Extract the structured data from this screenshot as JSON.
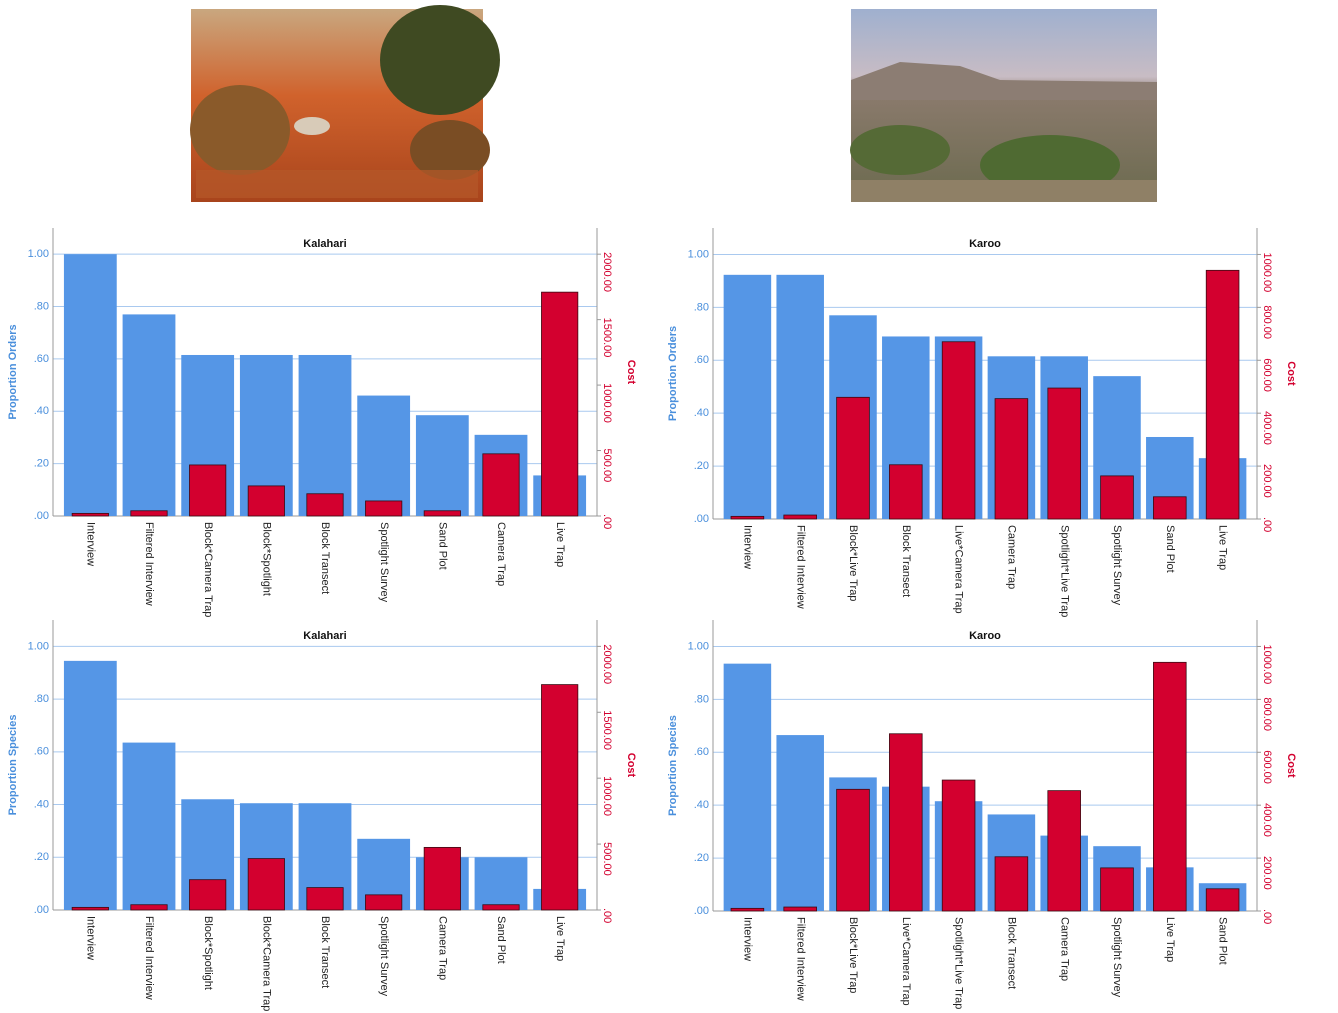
{
  "chart_data": [
    {
      "type": "bar",
      "title": "Kalahari",
      "categories": [
        "Interview",
        "Filtered Interview",
        "Block*Camera Trap",
        "Block*Spotlight",
        "Block Transect",
        "Spotlight Survey",
        "Sand Plot",
        "Camera Trap",
        "Live Trap"
      ],
      "series": [
        {
          "name": "Proportion Orders",
          "color": "#5596e6",
          "values": [
            1.0,
            0.77,
            0.615,
            0.615,
            0.615,
            0.46,
            0.385,
            0.31,
            0.155
          ]
        },
        {
          "name": "Cost",
          "color": "#d3002f",
          "axis": "y2",
          "values": [
            20,
            40,
            390,
            230,
            170,
            115,
            40,
            475,
            1710
          ]
        }
      ],
      "ylim": [
        0,
        1.1
      ],
      "yticks": [
        {
          "value": 0,
          "label": ".00"
        },
        {
          "value": 0.2,
          "label": ".20"
        },
        {
          "value": 0.4,
          "label": ".40"
        },
        {
          "value": 0.6,
          "label": ".60"
        },
        {
          "value": 0.8,
          "label": ".80"
        },
        {
          "value": 1.0,
          "label": "1.00"
        }
      ],
      "y2lim": [
        0,
        2200
      ],
      "y2ticks": [
        {
          "value": 0,
          "label": ".00"
        },
        {
          "value": 500,
          "label": "500.00"
        },
        {
          "value": 1000,
          "label": "1000.00"
        },
        {
          "value": 1500,
          "label": "1500.00"
        },
        {
          "value": 2000,
          "label": "2000.00"
        }
      ],
      "grid": true
    },
    {
      "type": "bar",
      "title": "Karoo",
      "categories": [
        "Interview",
        "Filtered Interview",
        "Block*Live Trap",
        "Block Transect",
        "Live*Camera Trap",
        "Camera Trap",
        "Spotlight*Live Trap",
        "Spotlight Survey",
        "Sand Plot",
        "Live Trap"
      ],
      "series": [
        {
          "name": "Proportion Orders",
          "color": "#5596e6",
          "values": [
            0.923,
            0.923,
            0.77,
            0.69,
            0.69,
            0.615,
            0.615,
            0.54,
            0.31,
            0.23
          ]
        },
        {
          "name": "Cost",
          "color": "#d3002f",
          "axis": "y2",
          "values": [
            10,
            15,
            460,
            205,
            670,
            455,
            495,
            163,
            84,
            940
          ]
        }
      ],
      "ylim": [
        0,
        1.1
      ],
      "yticks": [
        {
          "value": 0,
          "label": ".00"
        },
        {
          "value": 0.2,
          "label": ".20"
        },
        {
          "value": 0.4,
          "label": ".40"
        },
        {
          "value": 0.6,
          "label": ".60"
        },
        {
          "value": 0.8,
          "label": ".80"
        },
        {
          "value": 1.0,
          "label": "1.00"
        }
      ],
      "y2lim": [
        0,
        1100
      ],
      "y2ticks": [
        {
          "value": 0,
          "label": ".00"
        },
        {
          "value": 200,
          "label": "200.00"
        },
        {
          "value": 400,
          "label": "400.00"
        },
        {
          "value": 600,
          "label": "600.00"
        },
        {
          "value": 800,
          "label": "800.00"
        },
        {
          "value": 1000,
          "label": "1000.00"
        }
      ],
      "grid": true
    },
    {
      "type": "bar",
      "title": "Kalahari",
      "categories": [
        "Interview",
        "Filtered Interview",
        "Block*Spotlight",
        "Block*Camera Trap",
        "Block Transect",
        "Spotlight Survey",
        "Camera Trap",
        "Sand Plot",
        "Live Trap"
      ],
      "series": [
        {
          "name": "Proportion Species",
          "color": "#5596e6",
          "values": [
            0.945,
            0.635,
            0.42,
            0.405,
            0.405,
            0.27,
            0.2,
            0.2,
            0.08
          ]
        },
        {
          "name": "Cost",
          "color": "#d3002f",
          "axis": "y2",
          "values": [
            20,
            40,
            230,
            390,
            170,
            115,
            475,
            40,
            1710
          ]
        }
      ],
      "ylim": [
        0,
        1.1
      ],
      "yticks": [
        {
          "value": 0,
          "label": ".00"
        },
        {
          "value": 0.2,
          "label": ".20"
        },
        {
          "value": 0.4,
          "label": ".40"
        },
        {
          "value": 0.6,
          "label": ".60"
        },
        {
          "value": 0.8,
          "label": ".80"
        },
        {
          "value": 1.0,
          "label": "1.00"
        }
      ],
      "y2lim": [
        0,
        2200
      ],
      "y2ticks": [
        {
          "value": 0,
          "label": ".00"
        },
        {
          "value": 500,
          "label": "500.00"
        },
        {
          "value": 1000,
          "label": "1000.00"
        },
        {
          "value": 1500,
          "label": "1500.00"
        },
        {
          "value": 2000,
          "label": "2000.00"
        }
      ],
      "grid": true
    },
    {
      "type": "bar",
      "title": "Karoo",
      "categories": [
        "Interview",
        "Filtered Interview",
        "Block*Live Trap",
        "Live*Camera Trap",
        "Spotlight*Live Trap",
        "Block Transect",
        "Camera Trap",
        "Spotlight Survey",
        "Live Trap",
        "Sand Plot"
      ],
      "series": [
        {
          "name": "Proportion Species",
          "color": "#5596e6",
          "values": [
            0.935,
            0.665,
            0.505,
            0.47,
            0.415,
            0.365,
            0.285,
            0.245,
            0.165,
            0.105
          ]
        },
        {
          "name": "Cost",
          "color": "#d3002f",
          "axis": "y2",
          "values": [
            10,
            15,
            460,
            670,
            495,
            205,
            455,
            163,
            940,
            84
          ]
        }
      ],
      "ylim": [
        0,
        1.1
      ],
      "yticks": [
        {
          "value": 0,
          "label": ".00"
        },
        {
          "value": 0.2,
          "label": ".20"
        },
        {
          "value": 0.4,
          "label": ".40"
        },
        {
          "value": 0.6,
          "label": ".60"
        },
        {
          "value": 0.8,
          "label": ".80"
        },
        {
          "value": 1.0,
          "label": "1.00"
        }
      ],
      "y2lim": [
        0,
        1100
      ],
      "y2ticks": [
        {
          "value": 0,
          "label": ".00"
        },
        {
          "value": 200,
          "label": "200.00"
        },
        {
          "value": 400,
          "label": "400.00"
        },
        {
          "value": 600,
          "label": "600.00"
        },
        {
          "value": 800,
          "label": "800.00"
        },
        {
          "value": 1000,
          "label": "1000.00"
        }
      ],
      "grid": true
    }
  ]
}
